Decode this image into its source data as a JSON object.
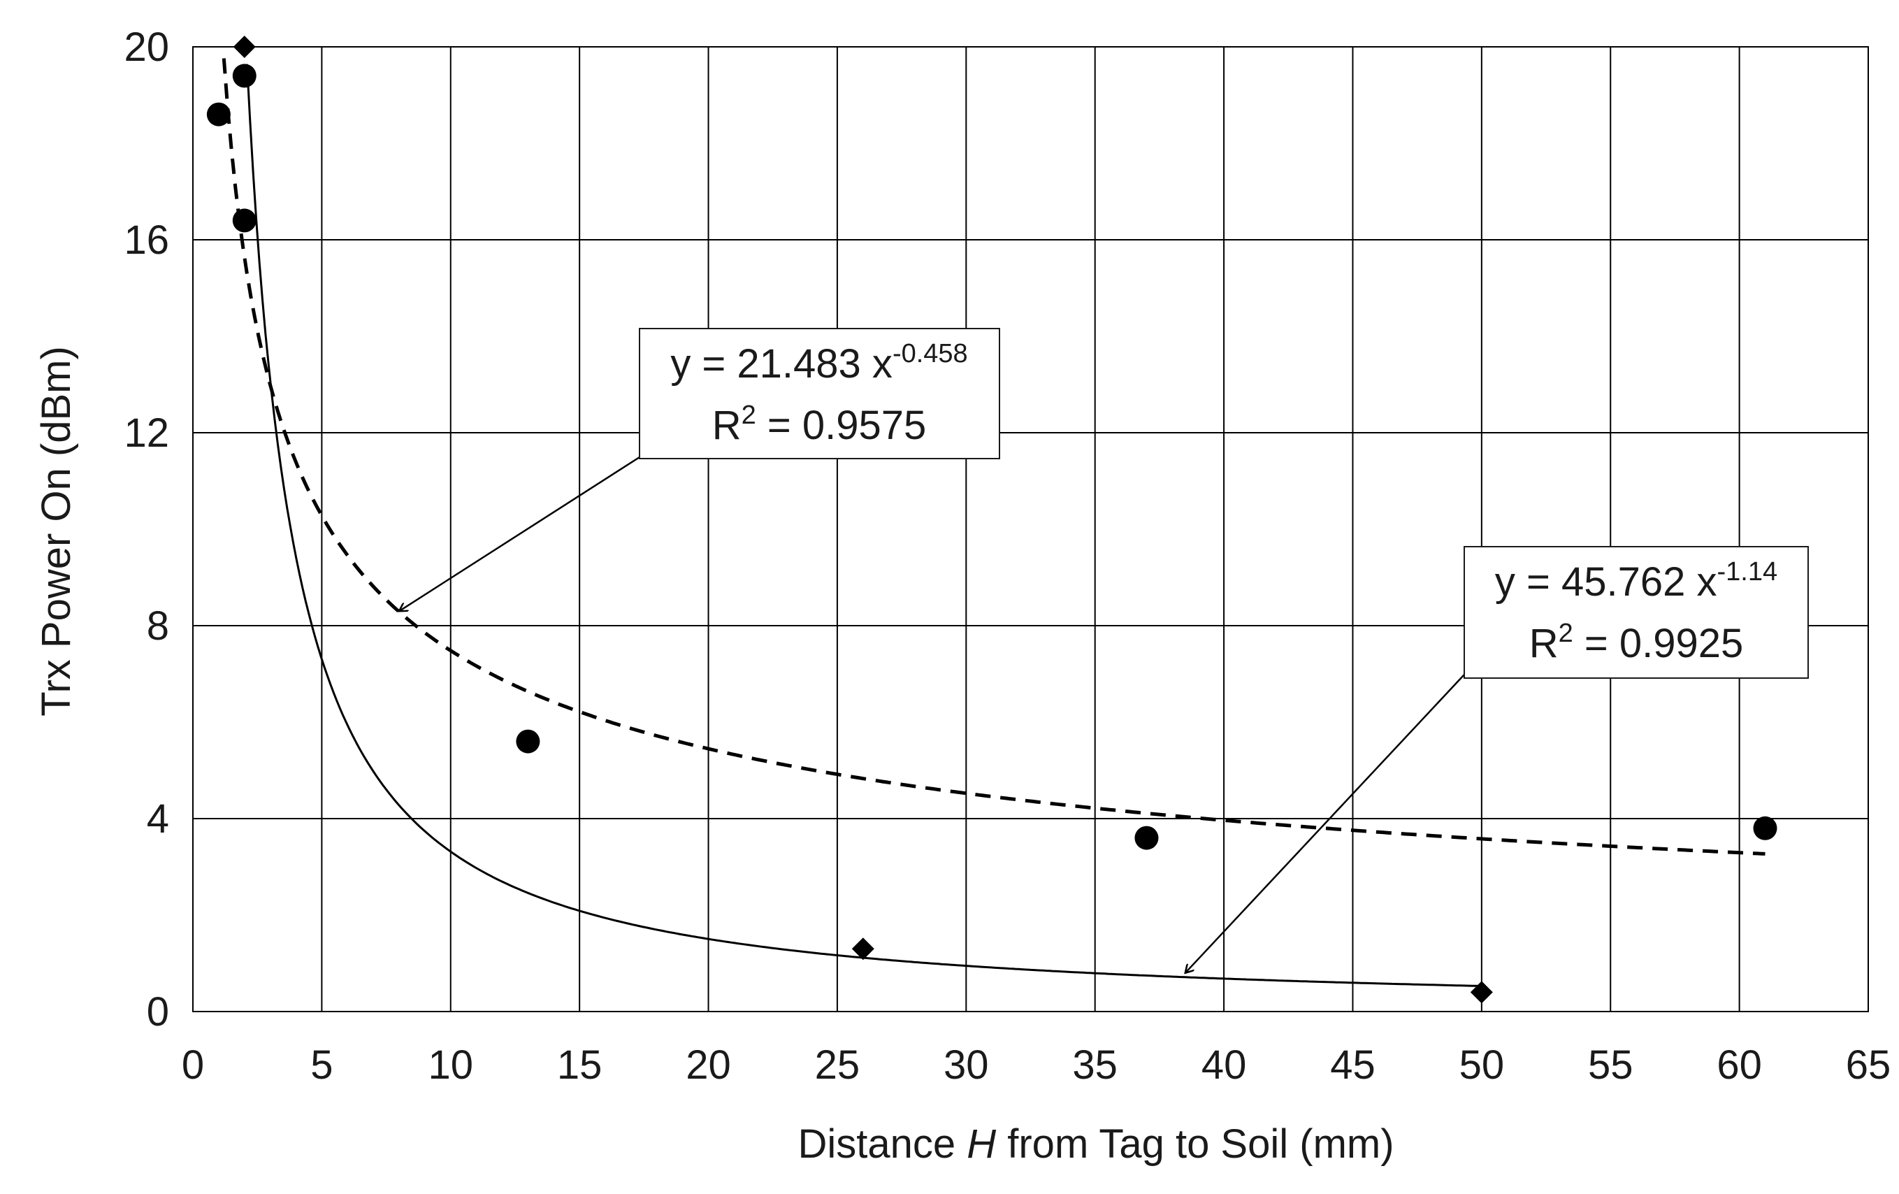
{
  "chart_data": {
    "type": "scatter",
    "title": "",
    "xlabel_prefix": "Distance ",
    "xlabel_italic": "H",
    "xlabel_suffix": " from Tag to Soil (mm)",
    "ylabel": "Trx Power On (dBm)",
    "xlim": [
      0,
      65
    ],
    "ylim": [
      0,
      20
    ],
    "x_ticks": [
      0,
      5,
      10,
      15,
      20,
      25,
      30,
      35,
      40,
      45,
      50,
      55,
      60,
      65
    ],
    "y_ticks": [
      0,
      4,
      8,
      12,
      16,
      20
    ],
    "grid": true,
    "series": [
      {
        "name": "circles",
        "marker": "circle",
        "points": [
          [
            1,
            18.6
          ],
          [
            2,
            19.4
          ],
          [
            2,
            16.4
          ],
          [
            13,
            5.6
          ],
          [
            37,
            3.6
          ],
          [
            61,
            3.8
          ]
        ],
        "fit": {
          "type": "power",
          "a": 21.483,
          "b": -0.458,
          "x_range": [
            1.2,
            61
          ],
          "style": "dashed"
        }
      },
      {
        "name": "diamonds",
        "marker": "diamond",
        "points": [
          [
            2,
            20.0
          ],
          [
            26,
            1.3
          ],
          [
            50,
            0.4
          ]
        ],
        "fit": {
          "type": "power",
          "a": 45.762,
          "b": -1.14,
          "x_range": [
            2.1,
            50
          ],
          "style": "solid"
        }
      }
    ],
    "annotations": [
      {
        "eq_prefix": "y = 21.483  x",
        "eq_exponent": "-0.458",
        "r2_prefix": "R",
        "r2_sup": "2",
        "r2_value": " = 0.9575",
        "arrow_to": [
          8,
          8.3
        ]
      },
      {
        "eq_prefix": "y = 45.762  x",
        "eq_exponent": "-1.14",
        "r2_prefix": "R",
        "r2_sup": "2",
        "r2_value": " = 0.9925",
        "arrow_to": [
          38.5,
          0.8
        ]
      }
    ]
  }
}
